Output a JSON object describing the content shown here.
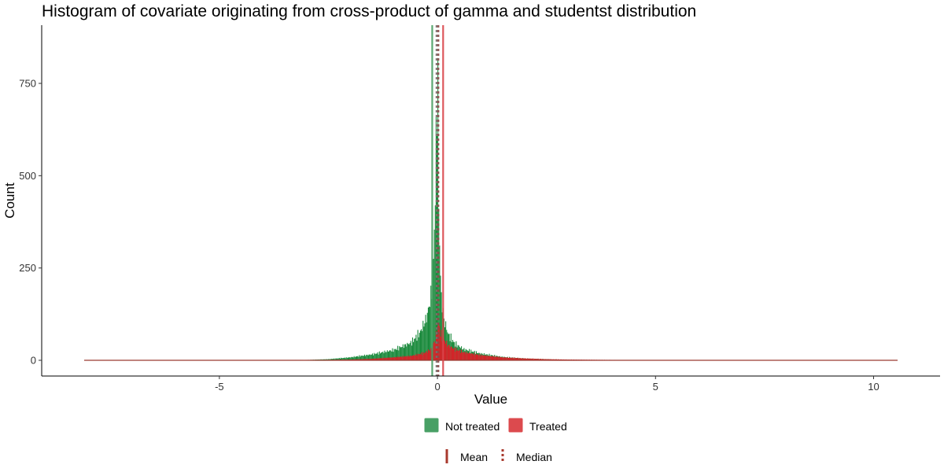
{
  "chart_data": {
    "type": "histogram",
    "title": "Histogram of covariate originating from cross-product of gamma and studentst distribution",
    "xlabel": "Value",
    "ylabel": "Count",
    "xlim": [
      -8.1,
      10.55
    ],
    "ylim": [
      0,
      880
    ],
    "x_ticks": [
      -5,
      0,
      5,
      10
    ],
    "x_tick_labels": [
      "-5",
      "0",
      "5",
      "10"
    ],
    "y_ticks": [
      0,
      250,
      500,
      750
    ],
    "y_tick_labels": [
      "0",
      "250",
      "500",
      "750"
    ],
    "grid": false,
    "bin_width": 0.02,
    "series": [
      {
        "name": "Not treated",
        "color": "#1a8a3c",
        "profile": [
          [
            -8.1,
            0
          ],
          [
            -3.0,
            1
          ],
          [
            -2.5,
            3
          ],
          [
            -2.0,
            8
          ],
          [
            -1.5,
            16
          ],
          [
            -1.0,
            28
          ],
          [
            -0.6,
            48
          ],
          [
            -0.4,
            75
          ],
          [
            -0.25,
            115
          ],
          [
            -0.15,
            170
          ],
          [
            -0.08,
            300
          ],
          [
            -0.03,
            560
          ],
          [
            0.0,
            870
          ],
          [
            0.03,
            420
          ],
          [
            0.08,
            180
          ],
          [
            0.15,
            110
          ],
          [
            0.25,
            70
          ],
          [
            0.4,
            45
          ],
          [
            0.6,
            30
          ],
          [
            1.0,
            18
          ],
          [
            1.5,
            9
          ],
          [
            2.0,
            5
          ],
          [
            2.5,
            3
          ],
          [
            3.0,
            1.5
          ],
          [
            4.0,
            0.5
          ],
          [
            10.55,
            0
          ]
        ],
        "mean": -0.12,
        "median": -0.02
      },
      {
        "name": "Treated",
        "color": "#d62228",
        "profile": [
          [
            -8.1,
            0
          ],
          [
            -3.0,
            0.5
          ],
          [
            -2.0,
            2
          ],
          [
            -1.5,
            4
          ],
          [
            -1.0,
            8
          ],
          [
            -0.6,
            12
          ],
          [
            -0.3,
            20
          ],
          [
            -0.15,
            30
          ],
          [
            -0.05,
            55
          ],
          [
            0.0,
            85
          ],
          [
            0.03,
            100
          ],
          [
            0.08,
            70
          ],
          [
            0.15,
            55
          ],
          [
            0.25,
            40
          ],
          [
            0.4,
            30
          ],
          [
            0.6,
            22
          ],
          [
            1.0,
            14
          ],
          [
            1.5,
            8
          ],
          [
            2.0,
            5
          ],
          [
            2.5,
            3
          ],
          [
            3.0,
            2
          ],
          [
            4.0,
            1
          ],
          [
            5.0,
            0.5
          ],
          [
            10.55,
            0
          ]
        ],
        "mean": 0.13,
        "median": 0.02
      }
    ],
    "vertical_lines": [
      {
        "series": "Not treated",
        "stat": "Mean",
        "value": -0.12,
        "style": "solid",
        "color": "#4a9e64"
      },
      {
        "series": "Treated",
        "stat": "Mean",
        "value": 0.13,
        "style": "solid",
        "color": "#d9454a"
      },
      {
        "series": "Not treated",
        "stat": "Median",
        "value": -0.02,
        "style": "dotted",
        "color": "#7a6f6a"
      },
      {
        "series": "Treated",
        "stat": "Median",
        "value": 0.02,
        "style": "dotted",
        "color": "#8a4a48"
      }
    ],
    "legend_fill": {
      "position": "bottom",
      "items": [
        {
          "label": "Not treated",
          "color": "#48a065"
        },
        {
          "label": "Treated",
          "color": "#dc4a4e"
        }
      ]
    },
    "legend_lines": {
      "position": "bottom",
      "items": [
        {
          "label": "Mean",
          "style": "solid",
          "color": "#a83a2e"
        },
        {
          "label": "Median",
          "style": "dotted",
          "color": "#a83a2e"
        }
      ]
    }
  }
}
